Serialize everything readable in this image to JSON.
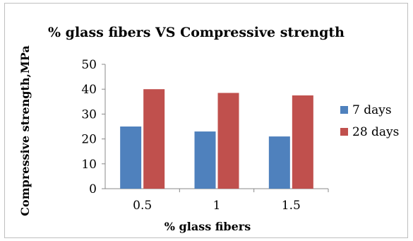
{
  "chart_data": {
    "type": "bar",
    "title": "% glass fibers VS Compressive  strength",
    "xlabel": "% glass fibers",
    "ylabel": "Compressive strength,MPa",
    "categories": [
      "0.5",
      "1",
      "1.5"
    ],
    "series": [
      {
        "name": "7 days",
        "values": [
          25,
          23,
          21
        ],
        "color": "#4f81bd"
      },
      {
        "name": "28 days",
        "values": [
          40,
          38.5,
          37.5
        ],
        "color": "#c0504d"
      }
    ],
    "ylim": [
      0,
      50
    ],
    "yticks": [
      0,
      10,
      20,
      30,
      40,
      50
    ],
    "grid": false,
    "legend": "right"
  }
}
